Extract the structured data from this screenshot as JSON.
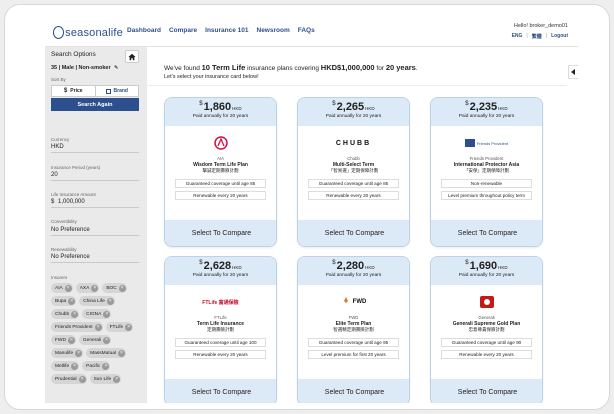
{
  "header": {
    "logo_text": "seasonalife",
    "nav": [
      "Dashboard",
      "Compare",
      "Insurance 101",
      "Newsroom",
      "FAQs"
    ],
    "greeting": "Hello! broker_demo01",
    "links": [
      "ENG",
      "繁體",
      "Logout"
    ]
  },
  "sidebar": {
    "title": "Search Options",
    "profile": "35 | Male | Non-smoker",
    "sort_label": "Sort By",
    "sort_options": [
      "Price",
      "Brand"
    ],
    "search_button": "Search Again",
    "currency_label": "Currency",
    "currency": "HKD",
    "period_label": "Insurance Period (years)",
    "period": "20",
    "amount_label": "Life Insurance Amount",
    "amount": "1,000,000",
    "amount_prefix": "$",
    "convertibility_label": "Convertibility",
    "convertibility": "No Preference",
    "renewability_label": "Renewability",
    "renewability": "No Preference",
    "insurers_label": "Insurers",
    "insurers": [
      "AIA",
      "AXA",
      "BOC",
      "Bupa",
      "China Life",
      "Chubb",
      "CIGNA",
      "Friends Provident",
      "FTLife",
      "FWD",
      "Generali",
      "Manulife",
      "MassMutual",
      "Metlife",
      "Pacific",
      "Prudential",
      "Sun Life"
    ]
  },
  "main": {
    "headline_pre": "We've found",
    "headline_count": "10 Term Life",
    "headline_mid": "insurance plans covering",
    "headline_amount": "HKD$1,000,000",
    "headline_for": "for",
    "headline_years": "20 years",
    "headline_end": ".",
    "subline": "Let's select your insurance card below!",
    "select_label": "Select To Compare",
    "paid_label": "Paid annually for 20 years",
    "currency_unit": "HKD",
    "dollar": "$"
  },
  "cards": [
    {
      "price": "1,860",
      "insurer": "AIA",
      "name": "Wisdom Term Life Plan",
      "name_zh": "擊誠定期壽險計劃",
      "features": [
        "Guaranteed coverage until age 85",
        "Renewable every 20 years"
      ],
      "logo": "AIA"
    },
    {
      "price": "2,265",
      "insurer": "Chubb",
      "name": "Multi-Select Term",
      "name_zh": "「智易選」定期保障計劃",
      "features": [
        "Guaranteed coverage until age 85",
        "Renewable every 20 years"
      ],
      "logo": "CHUBB"
    },
    {
      "price": "2,235",
      "insurer": "Friends Provident",
      "name": "International Protector Asia",
      "name_zh": "「安保」定期保障計劃",
      "features": [
        "Non-renewable",
        "Level premium throughout policy term"
      ],
      "logo": "Friends Provident"
    },
    {
      "price": "2,628",
      "insurer": "FTLife",
      "name": "Term Life Insurance",
      "name_zh": "定期壽險計劃",
      "features": [
        "Guaranteed coverage until age 100",
        "Renewable every 20 years"
      ],
      "logo": "FTLife 富通保險"
    },
    {
      "price": "2,280",
      "insurer": "FWD",
      "name": "Elite Term Plan",
      "name_zh": "智選精定期壽險計劃",
      "features": [
        "Guaranteed coverage until age 95",
        "Level premium for first 20 years"
      ],
      "logo": "FWD"
    },
    {
      "price": "1,690",
      "insurer": "Generali",
      "name": "Generali Supreme Gold Plan",
      "name_zh": "忠意尊貴保險計劃",
      "features": [
        "Guaranteed coverage until age 90",
        "Renewable every 20 years"
      ],
      "logo": "GENERALI"
    }
  ],
  "colors": {
    "brand": "#2d4f8e",
    "card_header": "#dce9f6",
    "aia_red": "#d31145",
    "fwd_orange": "#e87722",
    "generali_red": "#c21b17",
    "ftlife_red": "#c8102e"
  },
  "icons": [
    "home-icon",
    "dollar-icon",
    "brand-icon",
    "pencil-icon",
    "close-icon",
    "chevron-left-icon"
  ]
}
